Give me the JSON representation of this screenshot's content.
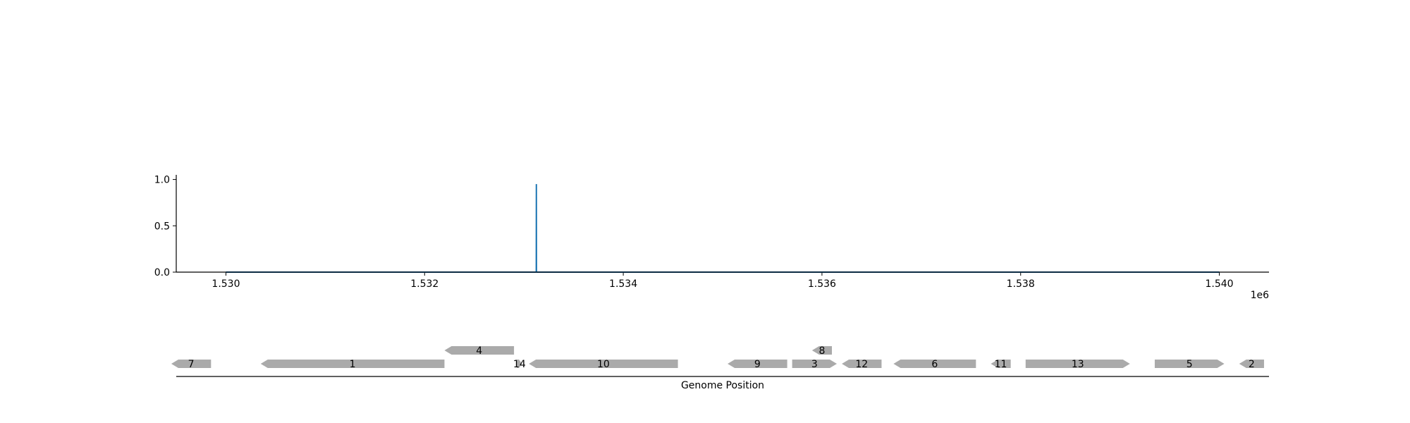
{
  "chart_data": [
    {
      "type": "line",
      "x": [
        1530000,
        1533124,
        1533125,
        1533126,
        1540000
      ],
      "series": [
        {
          "values": [
            0.0,
            0.0,
            0.95,
            0.0,
            0.0
          ]
        }
      ],
      "xlim": [
        1529500,
        1540500
      ],
      "ylim": [
        0.0,
        1.05
      ],
      "xticks": [
        1530000,
        1532000,
        1534000,
        1536000,
        1538000,
        1540000
      ],
      "xtick_labels": [
        "1.530",
        "1.532",
        "1.534",
        "1.536",
        "1.538",
        "1.540"
      ],
      "yticks": [
        0.0,
        0.5,
        1.0
      ],
      "ytick_labels": [
        "0.0",
        "0.5",
        "1.0"
      ],
      "x_offset_label": "1e6",
      "line_color": "#1f77b4",
      "grid": false
    },
    {
      "type": "gene-track",
      "xlabel": "Genome Position",
      "gene_color": "#aaaaaa",
      "genes": [
        {
          "label": "7",
          "start": 1529450,
          "end": 1529850,
          "strand": -1,
          "row": 0
        },
        {
          "label": "1",
          "start": 1530350,
          "end": 1532200,
          "strand": -1,
          "row": 0
        },
        {
          "label": "4",
          "start": 1532200,
          "end": 1532900,
          "strand": -1,
          "row": 1
        },
        {
          "label": "14",
          "start": 1532930,
          "end": 1532980,
          "strand": 1,
          "row": 0
        },
        {
          "label": "10",
          "start": 1533050,
          "end": 1534550,
          "strand": -1,
          "row": 0
        },
        {
          "label": "9",
          "start": 1535050,
          "end": 1535650,
          "strand": -1,
          "row": 0
        },
        {
          "label": "3",
          "start": 1535700,
          "end": 1536150,
          "strand": 1,
          "row": 0
        },
        {
          "label": "8",
          "start": 1535900,
          "end": 1536100,
          "strand": -1,
          "row": 1
        },
        {
          "label": "12",
          "start": 1536200,
          "end": 1536600,
          "strand": -1,
          "row": 0
        },
        {
          "label": "6",
          "start": 1536720,
          "end": 1537550,
          "strand": -1,
          "row": 0
        },
        {
          "label": "11",
          "start": 1537700,
          "end": 1537900,
          "strand": -1,
          "row": 0
        },
        {
          "label": "13",
          "start": 1538050,
          "end": 1539100,
          "strand": 1,
          "row": 0
        },
        {
          "label": "5",
          "start": 1539350,
          "end": 1540050,
          "strand": 1,
          "row": 0
        },
        {
          "label": "2",
          "start": 1540200,
          "end": 1540450,
          "strand": -1,
          "row": 0
        }
      ]
    }
  ]
}
